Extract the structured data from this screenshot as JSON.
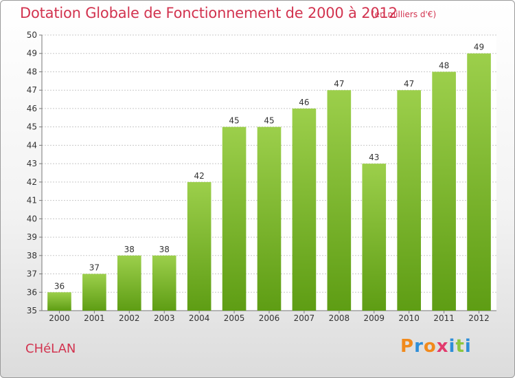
{
  "title": "Dotation Globale de Fonctionnement de 2000 à 2012",
  "subtitle": "(en milliers d'€)",
  "town": "CHéLAN",
  "logo": {
    "text": "Proxiti",
    "letters": [
      {
        "ch": "P",
        "color": "#f18a1c"
      },
      {
        "ch": "r",
        "color": "#2e8ed8"
      },
      {
        "ch": "o",
        "color": "#f18a1c"
      },
      {
        "ch": "x",
        "color": "#e23a6d"
      },
      {
        "ch": "i",
        "color": "#2e8ed8"
      },
      {
        "ch": "t",
        "color": "#8cc63e"
      },
      {
        "ch": "i",
        "color": "#2e8ed8"
      }
    ]
  },
  "colors": {
    "title": "#d2334f",
    "bar_top": "#9ccf4b",
    "bar_bottom": "#5e9d14",
    "grid": "#c8c8c8",
    "axis_text": "#333333"
  },
  "chart_data": {
    "type": "bar",
    "categories": [
      "2000",
      "2001",
      "2002",
      "2003",
      "2004",
      "2005",
      "2006",
      "2007",
      "2008",
      "2009",
      "2010",
      "2011",
      "2012"
    ],
    "values": [
      36,
      37,
      38,
      38,
      42,
      45,
      45,
      46,
      47,
      43,
      47,
      48,
      49
    ],
    "ylim": [
      35,
      50
    ],
    "yticks": [
      35,
      36,
      37,
      38,
      39,
      40,
      41,
      42,
      43,
      44,
      45,
      46,
      47,
      48,
      49,
      50
    ],
    "grid": true,
    "legend": "none"
  }
}
